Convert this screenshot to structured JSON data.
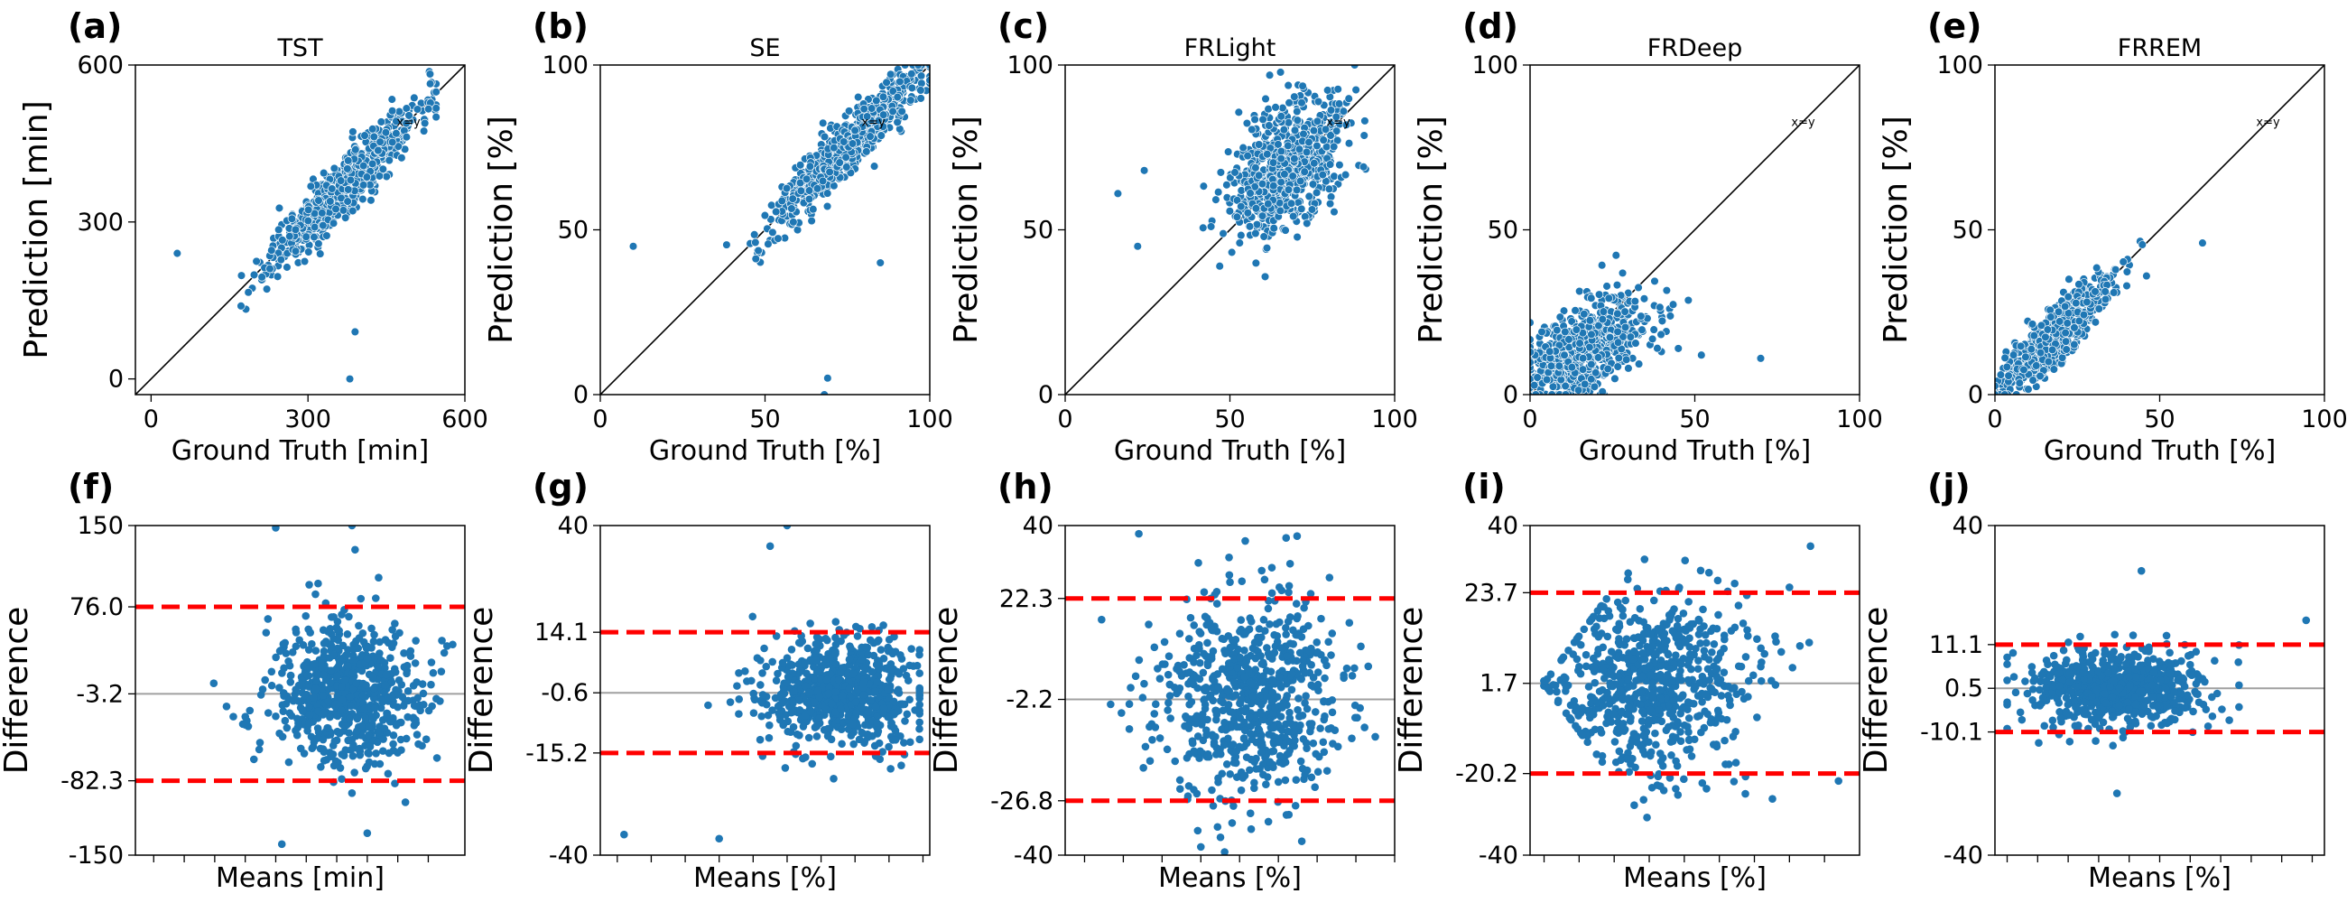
{
  "figure": {
    "point_color": "#1f77b4",
    "limit_color": "#ff0000",
    "mean_color": "#a0a0a0",
    "identity_color": "#000000"
  },
  "chart_data": [
    {
      "panel": "(a)",
      "type": "scatter",
      "title": "TST",
      "xlabel": "Ground Truth [min]",
      "ylabel": "Prediction [min]",
      "xlim": [
        -30,
        600
      ],
      "ylim": [
        -30,
        600
      ],
      "xticks": [
        0,
        300,
        600
      ],
      "xtick_labels": [
        "0",
        "300",
        "600"
      ],
      "yticks": [
        0,
        300,
        600
      ],
      "ytick_labels": [
        "0",
        "300",
        "600"
      ],
      "identity_label": "x=y",
      "points": {
        "n": 700,
        "seed": 11,
        "x_mean": 370,
        "x_sd": 70,
        "x_min": 50,
        "x_max": 545,
        "slope": 1.0,
        "intercept": 0,
        "noise_sd": 28,
        "outliers": [
          [
            50,
            240
          ],
          [
            380,
            0
          ],
          [
            390,
            90
          ]
        ]
      }
    },
    {
      "panel": "(b)",
      "type": "scatter",
      "title": "SE",
      "xlabel": "Ground Truth [%]",
      "ylabel": "Prediction [%]",
      "xlim": [
        0,
        100
      ],
      "ylim": [
        0,
        100
      ],
      "xticks": [
        0,
        50,
        100
      ],
      "xtick_labels": [
        "0",
        "50",
        "100"
      ],
      "yticks": [
        0,
        50,
        100
      ],
      "ytick_labels": [
        "0",
        "50",
        "100"
      ],
      "identity_label": "x=y",
      "points": {
        "n": 700,
        "seed": 12,
        "x_mean": 76,
        "x_sd": 11,
        "x_min": 10,
        "x_max": 100,
        "slope": 1.0,
        "intercept": 0,
        "noise_sd": 4.5,
        "outliers": [
          [
            10,
            45
          ],
          [
            68,
            0
          ],
          [
            69,
            5
          ],
          [
            85,
            40
          ]
        ]
      }
    },
    {
      "panel": "(c)",
      "type": "scatter",
      "title": "FRLight",
      "xlabel": "Ground Truth [%]",
      "ylabel": "Prediction [%]",
      "xlim": [
        0,
        100
      ],
      "ylim": [
        0,
        100
      ],
      "xticks": [
        0,
        50,
        100
      ],
      "xtick_labels": [
        "0",
        "50",
        "100"
      ],
      "yticks": [
        0,
        50,
        100
      ],
      "ytick_labels": [
        "0",
        "50",
        "100"
      ],
      "identity_label": "x=y",
      "points": {
        "n": 700,
        "seed": 13,
        "x_mean": 68,
        "x_sd": 9,
        "x_min": 15,
        "x_max": 100,
        "slope": 0.55,
        "intercept": 32,
        "noise_sd": 9,
        "outliers": [
          [
            16,
            61
          ],
          [
            24,
            68
          ],
          [
            22,
            45
          ]
        ]
      }
    },
    {
      "panel": "(d)",
      "type": "scatter",
      "title": "FRDeep",
      "xlabel": "Ground Truth [%]",
      "ylabel": "Prediction [%]",
      "xlim": [
        0,
        100
      ],
      "ylim": [
        0,
        100
      ],
      "xticks": [
        0,
        50,
        100
      ],
      "xtick_labels": [
        "0",
        "50",
        "100"
      ],
      "yticks": [
        0,
        50,
        100
      ],
      "ytick_labels": [
        "0",
        "50",
        "100"
      ],
      "identity_label": "x=y",
      "points": {
        "n": 700,
        "seed": 14,
        "x_mean": 16,
        "x_sd": 10,
        "x_min": 0,
        "x_max": 70,
        "slope": 0.5,
        "intercept": 5,
        "noise_sd": 7,
        "outliers": [
          [
            70,
            11
          ],
          [
            52,
            12
          ],
          [
            45,
            14
          ]
        ]
      }
    },
    {
      "panel": "(e)",
      "type": "scatter",
      "title": "FRREM",
      "xlabel": "Ground Truth [%]",
      "ylabel": "Prediction [%]",
      "xlim": [
        0,
        100
      ],
      "ylim": [
        0,
        100
      ],
      "xticks": [
        0,
        50,
        100
      ],
      "xtick_labels": [
        "0",
        "50",
        "100"
      ],
      "yticks": [
        0,
        50,
        100
      ],
      "ytick_labels": [
        "0",
        "50",
        "100"
      ],
      "identity_label": "x=y",
      "points": {
        "n": 700,
        "seed": 15,
        "x_mean": 18,
        "x_sd": 8,
        "x_min": 0,
        "x_max": 63,
        "slope": 0.95,
        "intercept": 1,
        "noise_sd": 4,
        "outliers": [
          [
            63,
            46
          ],
          [
            46,
            36
          ],
          [
            40,
            33
          ]
        ]
      }
    },
    {
      "panel": "(f)",
      "type": "scatter",
      "subtype": "bland-altman",
      "xlabel": "Means [min]",
      "ylabel": "Difference",
      "xlim": [
        20,
        560
      ],
      "ylim": [
        -150,
        150
      ],
      "yticks": [
        -150,
        -82.3,
        -3.2,
        76.0,
        150
      ],
      "ytick_labels": [
        "-150",
        "-82.3",
        "-3.2",
        "76.0",
        "150"
      ],
      "xticks": [
        50,
        100,
        150,
        200,
        250,
        300,
        350,
        400,
        450,
        500
      ],
      "mean_diff": -3.2,
      "loa_lower": -82.3,
      "loa_upper": 76.0,
      "points": {
        "n": 700,
        "seed": 21,
        "x_mean": 370,
        "x_sd": 65,
        "x_min": 100,
        "x_max": 540,
        "noise_sd": 32,
        "fan": false,
        "outliers": [
          [
            250,
            148
          ],
          [
            375,
            150
          ],
          [
            380,
            128
          ],
          [
            260,
            -140
          ],
          [
            400,
            -130
          ]
        ]
      }
    },
    {
      "panel": "(g)",
      "type": "scatter",
      "subtype": "bland-altman",
      "xlabel": "Means [%]",
      "ylabel": "Difference",
      "xlim": [
        5,
        102
      ],
      "ylim": [
        -40,
        40
      ],
      "yticks": [
        -40,
        -15.2,
        -0.6,
        14.1,
        40
      ],
      "ytick_labels": [
        "-40",
        "-15.2",
        "-0.6",
        "14.1",
        "40"
      ],
      "xticks": [
        10,
        20,
        30,
        40,
        50,
        60,
        70,
        80,
        90,
        100
      ],
      "mean_diff": -0.6,
      "loa_lower": -15.2,
      "loa_upper": 14.1,
      "points": {
        "n": 700,
        "seed": 22,
        "x_mean": 76,
        "x_sd": 11,
        "x_min": 20,
        "x_max": 99,
        "noise_sd": 6.5,
        "fan": false,
        "outliers": [
          [
            60,
            40
          ],
          [
            55,
            35
          ],
          [
            12,
            -35
          ],
          [
            40,
            -36
          ]
        ]
      }
    },
    {
      "panel": "(h)",
      "type": "scatter",
      "subtype": "bland-altman",
      "xlabel": "Means [%]",
      "ylabel": "Difference",
      "xlim": [
        15,
        100
      ],
      "ylim": [
        -40,
        40
      ],
      "yticks": [
        -40,
        -26.8,
        -2.2,
        22.3,
        40
      ],
      "ytick_labels": [
        "-40",
        "-26.8",
        "-2.2",
        "22.3",
        "40"
      ],
      "xticks": [
        20,
        30,
        40,
        50,
        60,
        70,
        80,
        90,
        100
      ],
      "mean_diff": -2.2,
      "loa_lower": -26.8,
      "loa_upper": 22.3,
      "points": {
        "n": 700,
        "seed": 23,
        "x_mean": 62,
        "x_sd": 12,
        "x_min": 22,
        "x_max": 95,
        "noise_sd": 12.5,
        "fan": false,
        "outliers": [
          [
            34,
            38
          ],
          [
            72,
            37
          ],
          [
            50,
            -38
          ]
        ]
      }
    },
    {
      "panel": "(i)",
      "type": "scatter",
      "subtype": "bland-altman",
      "xlabel": "Means [%]",
      "ylabel": "Difference",
      "xlim": [
        -2,
        45
      ],
      "ylim": [
        -40,
        40
      ],
      "yticks": [
        -40,
        -20.2,
        1.7,
        23.7,
        40
      ],
      "ytick_labels": [
        "-40",
        "-20.2",
        "1.7",
        "23.7",
        "40"
      ],
      "xticks": [
        0,
        5,
        10,
        15,
        20,
        25,
        30,
        35,
        40
      ],
      "mean_diff": 1.7,
      "loa_lower": -20.2,
      "loa_upper": 23.7,
      "points": {
        "n": 700,
        "seed": 24,
        "x_mean": 15,
        "x_sd": 7,
        "x_min": 0,
        "x_max": 40,
        "noise_sd": 11,
        "fan": true,
        "outliers": [
          [
            38,
            35
          ],
          [
            35,
            25
          ],
          [
            42,
            -22
          ]
        ]
      }
    },
    {
      "panel": "(j)",
      "type": "scatter",
      "subtype": "bland-altman",
      "xlabel": "Means [%]",
      "ylabel": "Difference",
      "xlim": [
        -2,
        52
      ],
      "ylim": [
        -40,
        40
      ],
      "yticks": [
        -40,
        -10.1,
        0.5,
        11.1,
        40
      ],
      "ytick_labels": [
        "-40",
        "-10.1",
        "0.5",
        "11.1",
        "40"
      ],
      "xticks": [
        0,
        5,
        10,
        15,
        20,
        25,
        30,
        35,
        40,
        45,
        50
      ],
      "mean_diff": 0.5,
      "loa_lower": -10.1,
      "loa_upper": 11.1,
      "points": {
        "n": 700,
        "seed": 25,
        "x_mean": 18,
        "x_sd": 7,
        "x_min": 0,
        "x_max": 38,
        "noise_sd": 4.6,
        "fan": false,
        "outliers": [
          [
            49,
            17
          ],
          [
            38,
            11
          ],
          [
            18,
            -25
          ],
          [
            22,
            29
          ]
        ]
      }
    }
  ]
}
